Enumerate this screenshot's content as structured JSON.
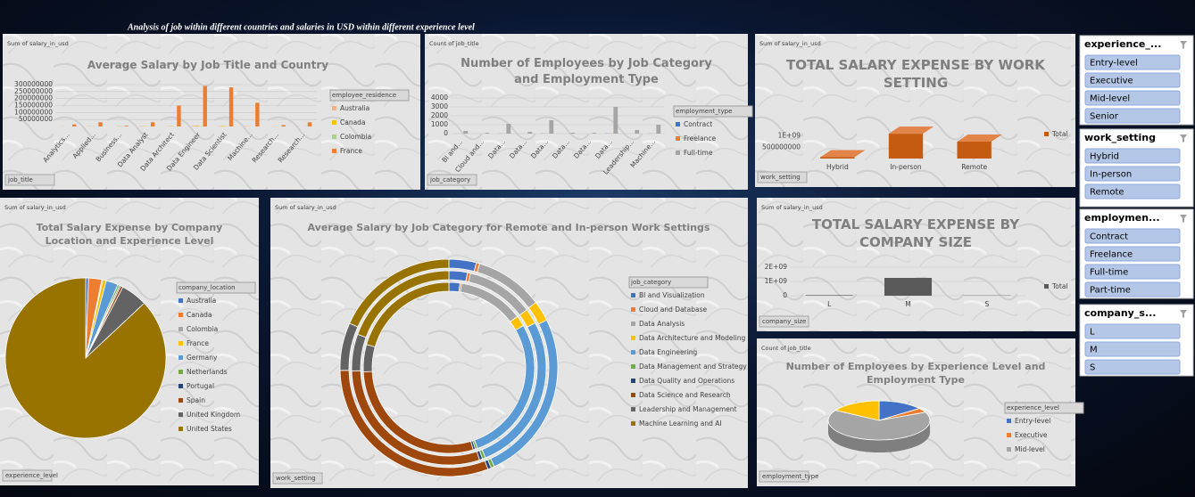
{
  "title": "Analysis of job within different countries and salaries in USD within different experience level",
  "chart_data": [
    {
      "type": "bar",
      "title": "Average Salary by Job Title and Country",
      "field_label": "Sum of salary_in_usd",
      "filter_label": "job_title",
      "legend_title": "employee_residence",
      "categories": [
        "Analytics...",
        "Applied...",
        "Business...",
        "Data Analyst",
        "Data Architect",
        "Data Engineer",
        "Data Scientist",
        "Machine...",
        "Research...",
        "Research..."
      ],
      "series": [
        {
          "name": "Australia",
          "color": "#f4b183",
          "values": [
            1000000,
            2000000,
            0,
            3000000,
            1000000,
            4000000,
            2000000,
            3000000,
            0,
            1000000
          ]
        },
        {
          "name": "Canada",
          "color": "#ffc000",
          "values": [
            0,
            1000000,
            2000000,
            2000000,
            3000000,
            5000000,
            4000000,
            2000000,
            1000000,
            0
          ]
        },
        {
          "name": "Colombia",
          "color": "#a9d18e",
          "values": [
            0,
            0,
            1000000,
            1000000,
            0,
            2000000,
            1000000,
            0,
            0,
            1000000
          ]
        },
        {
          "name": "France",
          "color": "#ed7d31",
          "values": [
            15000000,
            30000000,
            5000000,
            30000000,
            150000000,
            290000000,
            280000000,
            170000000,
            10000000,
            30000000
          ]
        }
      ],
      "ylim": [
        0,
        300000000
      ],
      "yticks": [
        50000000,
        100000000,
        150000000,
        200000000,
        250000000,
        300000000
      ],
      "grid": true
    },
    {
      "type": "bar",
      "title": "Number of Employees by Job Category and Employment Type",
      "field_label": "Count of job_title",
      "filter_label": "job_category",
      "legend_title": "employment_type",
      "categories": [
        "BI and...",
        "Cloud and...",
        "Data...",
        "Data...",
        "Data...",
        "Data...",
        "Data...",
        "Data...",
        "Leadership...",
        "Machine..."
      ],
      "series": [
        {
          "name": "Contract",
          "color": "#4472c4",
          "values": [
            5,
            2,
            10,
            3,
            15,
            2,
            1,
            20,
            4,
            10
          ]
        },
        {
          "name": "Freelance",
          "color": "#ed7d31",
          "values": [
            3,
            1,
            8,
            2,
            10,
            1,
            1,
            15,
            3,
            8
          ]
        },
        {
          "name": "Full-time",
          "color": "#a5a5a5",
          "values": [
            300,
            100,
            1100,
            200,
            1500,
            100,
            100,
            3000,
            400,
            1000
          ]
        }
      ],
      "ylim": [
        0,
        4000
      ],
      "yticks": [
        0,
        1000,
        2000,
        3000,
        4000
      ],
      "grid": true
    },
    {
      "type": "bar",
      "title": "TOTAL SALARY EXPENSE BY WORK SETTING",
      "field_label": "Sum of salary_in_usd",
      "filter_label": "work_setting",
      "categories": [
        "Hybrid",
        "In-person",
        "Remote"
      ],
      "series": [
        {
          "name": "Total",
          "color": "#c55a11",
          "values": [
            60000000,
            1100000000,
            750000000
          ]
        }
      ],
      "ylim": [
        0,
        1500000000
      ],
      "yticks": [
        500000000,
        {
          "value": 1000000000,
          "label": "1E+09"
        }
      ],
      "grid": false
    },
    {
      "type": "pie",
      "title": "Total Salary Expense by Company Location and Experience Level",
      "field_label": "Sum of salary_in_usd",
      "filter_label": "experience_level",
      "legend_title": "company_location",
      "categories": [
        "Australia",
        "Canada",
        "Colombia",
        "France",
        "Germany",
        "Netherlands",
        "Portugal",
        "Spain",
        "United Kingdom",
        "United States"
      ],
      "colors": [
        "#4472c4",
        "#ed7d31",
        "#a5a5a5",
        "#ffc000",
        "#5b9bd5",
        "#70ad47",
        "#264478",
        "#9e480e",
        "#636363",
        "#997300"
      ],
      "values": [
        12000000,
        55000000,
        4000000,
        15000000,
        50000000,
        8000000,
        5000000,
        10000000,
        110000000,
        1800000000
      ]
    },
    {
      "type": "doughnut",
      "title": "Average Salary by Job Category for Remote and In-person Work Settings",
      "field_label": "Sum of salary_in_usd",
      "filter_label": "work_setting",
      "legend_title": "job_category",
      "categories": [
        "BI and Visualization",
        "Cloud and Database",
        "Data Analysis",
        "Data Architecture and Modeling",
        "Data Engineering",
        "Data Management and Strategy",
        "Data Quality and Operations",
        "Data Science and Research",
        "Leadership and Management",
        "Machine Learning and AI"
      ],
      "colors": [
        "#4472c4",
        "#ed7d31",
        "#a5a5a5",
        "#ffc000",
        "#5b9bd5",
        "#70ad47",
        "#264478",
        "#9e480e",
        "#636363",
        "#997300"
      ],
      "series": [
        {
          "values": [
            40,
            5,
            100,
            30,
            250,
            5,
            5,
            300,
            70,
            180
          ]
        },
        {
          "values": [
            30,
            5,
            110,
            25,
            260,
            5,
            5,
            290,
            60,
            190
          ]
        },
        {
          "values": [
            20,
            3,
            120,
            20,
            270,
            4,
            4,
            280,
            50,
            200
          ]
        }
      ]
    },
    {
      "type": "bar",
      "title": "TOTAL SALARY EXPENSE BY COMPANY SIZE",
      "field_label": "Sum of salary_in_usd",
      "filter_label": "company_size",
      "categories": [
        "L",
        "M",
        "S"
      ],
      "series": [
        {
          "name": "Total",
          "color": "#595959",
          "values": [
            40000000,
            1250000000,
            20000000
          ]
        }
      ],
      "ylim": [
        0,
        2000000000
      ],
      "yticks": [
        0,
        {
          "value": 1000000000,
          "label": "1E+09"
        },
        {
          "value": 2000000000,
          "label": "2E+09"
        }
      ],
      "grid": true
    },
    {
      "type": "pie3d",
      "title": "Number of Employees by Experience Level and Employment Type",
      "field_label": "Count of job_title",
      "filter_label": "employment_type",
      "legend_title": "experience_level",
      "categories": [
        "Entry-level",
        "Executive",
        "Mid-level",
        null
      ],
      "colors": [
        "#4472c4",
        "#ed7d31",
        "#a5a5a5",
        "#ffc000"
      ],
      "values": [
        400,
        100,
        1800,
        450
      ]
    }
  ],
  "slicers": [
    {
      "title": "experience_...",
      "items": [
        "Entry-level",
        "Executive",
        "Mid-level",
        "Senior"
      ]
    },
    {
      "title": "work_setting",
      "items": [
        "Hybrid",
        "In-person",
        "Remote"
      ]
    },
    {
      "title": "employmen...",
      "items": [
        "Contract",
        "Freelance",
        "Full-time",
        "Part-time"
      ]
    },
    {
      "title": "company_s...",
      "items": [
        "L",
        "M",
        "S"
      ]
    }
  ]
}
